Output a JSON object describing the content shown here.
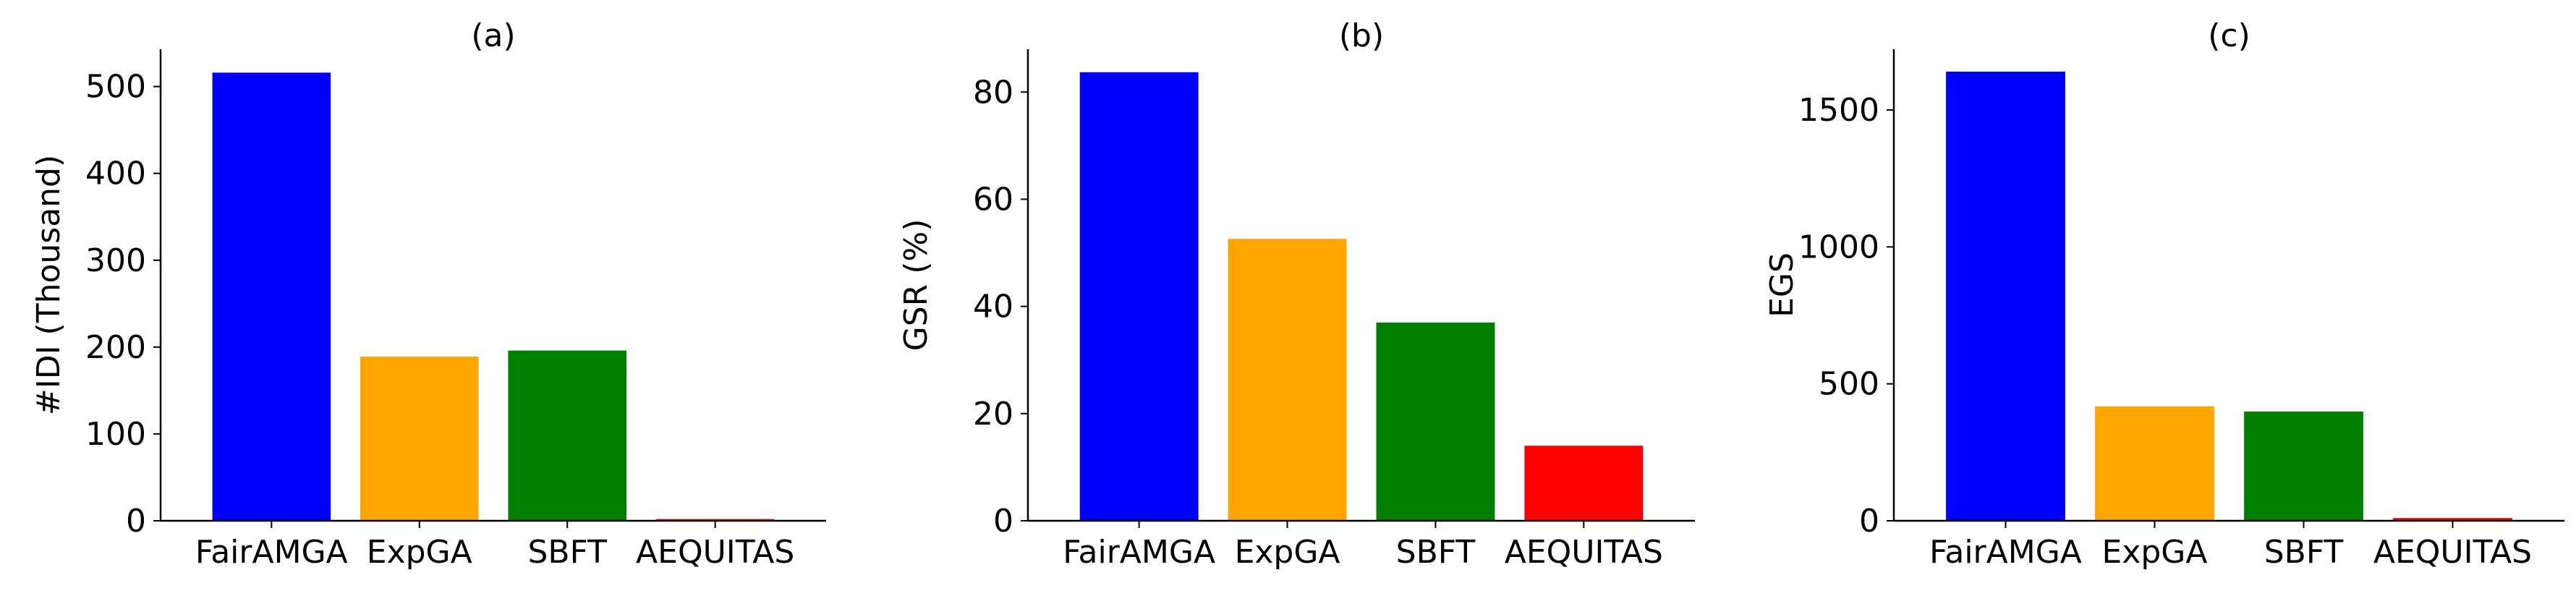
{
  "chart_data": [
    {
      "type": "bar",
      "title": "(a)",
      "xlabel": "",
      "ylabel": "#IDI (Thousand)",
      "categories": [
        "FairAMGA",
        "ExpGA",
        "SBFT",
        "AEQUITAS"
      ],
      "values": [
        516,
        189,
        196,
        2
      ],
      "colors": [
        "#0000ff",
        "#ffa500",
        "#008000",
        "#ff0000"
      ],
      "ylim": [
        0,
        543
      ],
      "yticks": [
        0,
        100,
        200,
        300,
        400,
        500
      ],
      "grid": false
    },
    {
      "type": "bar",
      "title": "(b)",
      "xlabel": "",
      "ylabel": "GSR (%)",
      "categories": [
        "FairAMGA",
        "ExpGA",
        "SBFT",
        "AEQUITAS"
      ],
      "values": [
        83.7,
        52.6,
        37.0,
        14.0
      ],
      "colors": [
        "#0000ff",
        "#ffa500",
        "#008000",
        "#ff0000"
      ],
      "ylim": [
        0,
        88
      ],
      "yticks": [
        0,
        20,
        40,
        60,
        80
      ],
      "grid": false
    },
    {
      "type": "bar",
      "title": "(c)",
      "xlabel": "",
      "ylabel": "EGS",
      "categories": [
        "FairAMGA",
        "ExpGA",
        "SBFT",
        "AEQUITAS"
      ],
      "values": [
        1640,
        418,
        399,
        10
      ],
      "colors": [
        "#0000ff",
        "#ffa500",
        "#008000",
        "#ff0000"
      ],
      "ylim": [
        0,
        1722
      ],
      "yticks": [
        0,
        500,
        1000,
        1500
      ],
      "grid": false
    }
  ]
}
